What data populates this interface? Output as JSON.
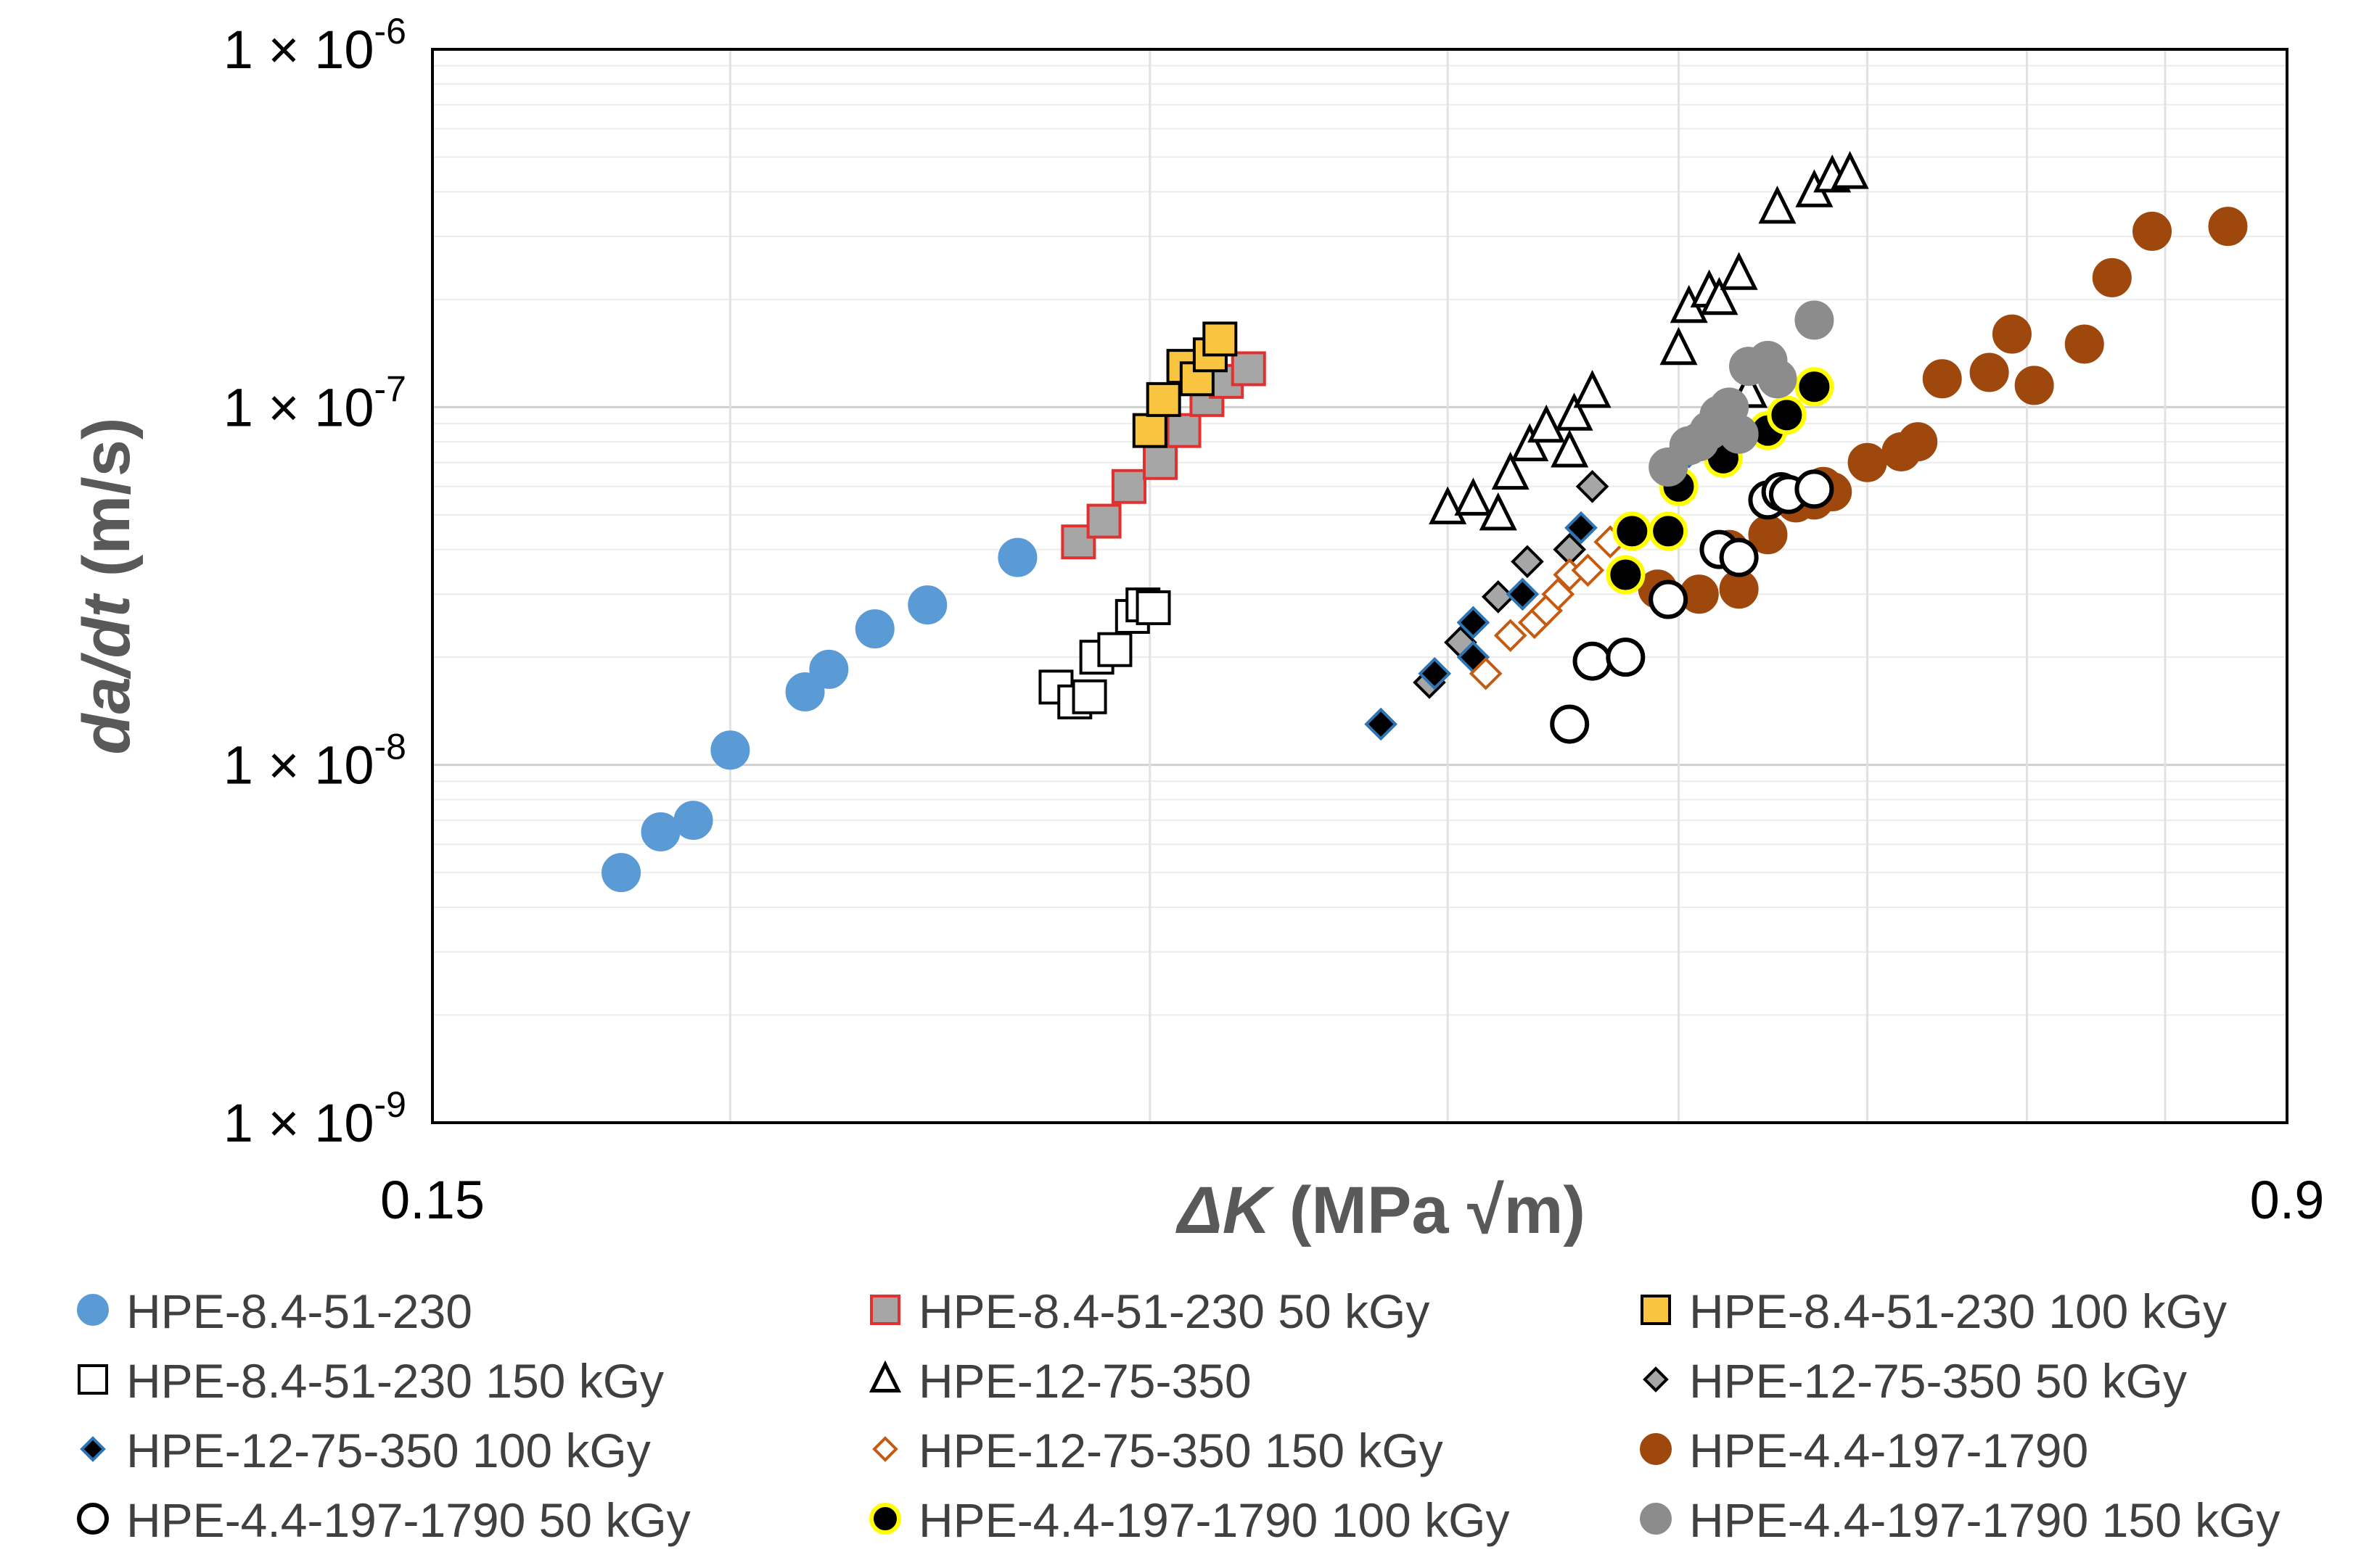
{
  "chart_data": {
    "type": "scatter",
    "title": "",
    "xlabel_symbol": "ΔK",
    "xlabel_units": " (MPa √m)",
    "ylabel_italic": "da/dt",
    "ylabel_units": " (m/s)",
    "xscale": "log",
    "yscale": "log",
    "xlim": [
      0.15,
      0.9
    ],
    "ylim": [
      1e-09,
      1e-06
    ],
    "x_tick_labels": [
      "0.15",
      "0.9"
    ],
    "y_ticks": [
      {
        "base": "1 × 10",
        "exp": "-9"
      },
      {
        "base": "1 × 10",
        "exp": "-8"
      },
      {
        "base": "1 × 10",
        "exp": "-7"
      },
      {
        "base": "1 × 10",
        "exp": "-6"
      }
    ],
    "grid": true,
    "legend_position": "bottom",
    "series": [
      {
        "name": "HPE-8.4-51-230",
        "marker": "circle",
        "fill": "#5b9bd5",
        "stroke": "#5b9bd5",
        "x": [
          0.18,
          0.187,
          0.193,
          0.2,
          0.215,
          0.22,
          0.23,
          0.242,
          0.264
        ],
        "y": [
          5e-09,
          6.5e-09,
          7e-09,
          1.1e-08,
          1.6e-08,
          1.85e-08,
          2.4e-08,
          2.8e-08,
          3.8e-08
        ]
      },
      {
        "name": "HPE-8.4-51-230 50 kGy",
        "marker": "square",
        "fill": "#a6a6a6",
        "stroke": "#e03030",
        "x": [
          0.28,
          0.287,
          0.294,
          0.303,
          0.31,
          0.317,
          0.323,
          0.33
        ],
        "y": [
          4.2e-08,
          4.8e-08,
          6e-08,
          7e-08,
          8.6e-08,
          1.05e-07,
          1.18e-07,
          1.28e-07
        ]
      },
      {
        "name": "HPE-8.4-51-230 100 kGy",
        "marker": "square",
        "fill": "#f9c440",
        "stroke": "#000000",
        "x": [
          0.3,
          0.304,
          0.31,
          0.314,
          0.318,
          0.321
        ],
        "y": [
          8.6e-08,
          1.05e-07,
          1.3e-07,
          1.2e-07,
          1.4e-07,
          1.55e-07
        ]
      },
      {
        "name": "HPE-8.4-51-230 150 kGy",
        "marker": "square",
        "fill": "#ffffff",
        "stroke": "#000000",
        "x": [
          0.274,
          0.279,
          0.283,
          0.285,
          0.29,
          0.295,
          0.298,
          0.301
        ],
        "y": [
          1.65e-08,
          1.5e-08,
          1.55e-08,
          2e-08,
          2.1e-08,
          2.6e-08,
          2.8e-08,
          2.75e-08
        ]
      },
      {
        "name": "HPE-12-75-350",
        "marker": "triangle",
        "fill": "#ffffff",
        "stroke": "#000000",
        "x": [
          0.4,
          0.41,
          0.42,
          0.425,
          0.433,
          0.44,
          0.45,
          0.452,
          0.46,
          0.5,
          0.505,
          0.515,
          0.52,
          0.53,
          0.535,
          0.55,
          0.57,
          0.58,
          0.59
        ],
        "y": [
          5.2e-08,
          5.5e-08,
          5e-08,
          6.5e-08,
          7.8e-08,
          8.8e-08,
          7.5e-08,
          9.5e-08,
          1.1e-07,
          1.45e-07,
          1.9e-07,
          2.1e-07,
          2e-07,
          2.35e-07,
          1.1e-07,
          3.6e-07,
          4e-07,
          4.4e-07,
          4.5e-07
        ]
      },
      {
        "name": "HPE-12-75-350 50 kGy",
        "marker": "diamond",
        "fill": "#a6a6a6",
        "stroke": "#000000",
        "x": [
          0.393,
          0.405,
          0.42,
          0.432,
          0.45,
          0.46
        ],
        "y": [
          1.7e-08,
          2.2e-08,
          2.95e-08,
          3.7e-08,
          4e-08,
          6e-08
        ]
      },
      {
        "name": "HPE-12-75-350 100 kGy",
        "marker": "diamond",
        "fill": "#000000",
        "stroke": "#2e75b6",
        "x": [
          0.375,
          0.395,
          0.41,
          0.41,
          0.43,
          0.455,
          0.505
        ],
        "y": [
          1.3e-08,
          1.8e-08,
          2e-08,
          2.5e-08,
          3e-08,
          4.6e-08,
          7.5e-08
        ]
      },
      {
        "name": "HPE-12-75-350 150 kGy",
        "marker": "diamond",
        "fill": "#ffffff",
        "stroke": "#c55a11",
        "x": [
          0.415,
          0.425,
          0.435,
          0.44,
          0.445,
          0.45,
          0.458,
          0.468
        ],
        "y": [
          1.8e-08,
          2.3e-08,
          2.5e-08,
          2.7e-08,
          3e-08,
          3.4e-08,
          3.5e-08,
          4.2e-08
        ]
      },
      {
        "name": "HPE-4.4-197-1790",
        "marker": "circle",
        "fill": "#9e480e",
        "stroke": "#9e480e",
        "x": [
          0.49,
          0.51,
          0.525,
          0.53,
          0.545,
          0.56,
          0.57,
          0.575,
          0.58,
          0.6,
          0.62,
          0.63,
          0.645,
          0.675,
          0.69,
          0.705,
          0.74,
          0.76,
          0.79,
          0.85
        ],
        "y": [
          3.1e-08,
          3e-08,
          4e-08,
          3.1e-08,
          4.4e-08,
          5.4e-08,
          5.5e-08,
          6e-08,
          5.8e-08,
          7e-08,
          7.5e-08,
          8e-08,
          1.2e-07,
          1.25e-07,
          1.6e-07,
          1.15e-07,
          1.5e-07,
          2.3e-07,
          3.1e-07,
          3.2e-07
        ]
      },
      {
        "name": "HPE-4.4-197-1790 50 kGy",
        "marker": "circle",
        "fill": "#ffffff",
        "stroke": "#000000",
        "x": [
          0.45,
          0.46,
          0.475,
          0.495,
          0.52,
          0.53,
          0.545,
          0.552,
          0.556,
          0.57
        ],
        "y": [
          1.3e-08,
          1.95e-08,
          2e-08,
          2.9e-08,
          4e-08,
          3.8e-08,
          5.5e-08,
          5.8e-08,
          5.7e-08,
          5.9e-08
        ]
      },
      {
        "name": "HPE-4.4-197-1790 100 kGy",
        "marker": "circle",
        "fill": "#000000",
        "stroke": "#ffff00",
        "x": [
          0.475,
          0.478,
          0.495,
          0.5,
          0.522,
          0.545,
          0.555,
          0.57
        ],
        "y": [
          3.4e-08,
          4.5e-08,
          4.5e-08,
          6e-08,
          7.2e-08,
          8.6e-08,
          9.5e-08,
          1.14e-07
        ]
      },
      {
        "name": "HPE-4.4-197-1790 150 kGy",
        "marker": "circle",
        "fill": "#8c8c8c",
        "stroke": "#8c8c8c",
        "x": [
          0.495,
          0.505,
          0.51,
          0.515,
          0.52,
          0.525,
          0.53,
          0.535,
          0.545,
          0.55,
          0.57
        ],
        "y": [
          6.8e-08,
          7.8e-08,
          8e-08,
          8.6e-08,
          9.5e-08,
          1e-07,
          8.4e-08,
          1.3e-07,
          1.35e-07,
          1.2e-07,
          1.75e-07
        ]
      }
    ]
  }
}
